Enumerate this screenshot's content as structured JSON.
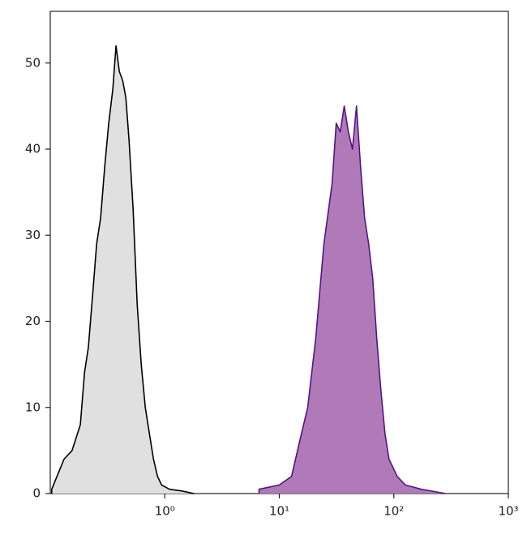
{
  "chart_data": {
    "type": "histogram-overlay",
    "x_scale": "log",
    "xlim": [
      0.1,
      1000
    ],
    "xticks": [
      {
        "value": 1,
        "label": "10⁰"
      },
      {
        "value": 10,
        "label": "10¹"
      },
      {
        "value": 100,
        "label": "10²"
      },
      {
        "value": 1000,
        "label": "10³"
      }
    ],
    "ylim": [
      0,
      56
    ],
    "yticks": [
      0,
      10,
      20,
      30,
      40,
      50
    ],
    "series": [
      {
        "color": "#000000",
        "fill": "#e0e0e0",
        "x": [
          0.103,
          0.132,
          0.155,
          0.183,
          0.199,
          0.215,
          0.234,
          0.254,
          0.275,
          0.299,
          0.324,
          0.352,
          0.375,
          0.401,
          0.428,
          0.457,
          0.488,
          0.529,
          0.574,
          0.623,
          0.676,
          0.733,
          0.796,
          0.864,
          0.937,
          1.1,
          1.41,
          1.8
        ],
        "values": [
          0.5,
          4,
          5,
          8,
          14,
          17,
          23,
          29,
          32,
          38,
          43,
          47,
          52,
          49,
          48,
          46,
          41,
          33,
          22,
          15,
          10,
          7,
          4,
          2,
          1,
          0.5,
          0.3,
          0
        ]
      },
      {
        "color": "#521585",
        "fill": "#b07ab8",
        "x": [
          6.65,
          10,
          12.8,
          15,
          17.7,
          20.8,
          24.5,
          28.9,
          31.4,
          34,
          36.9,
          40.1,
          43.5,
          47.2,
          51.2,
          55.6,
          60.3,
          65.4,
          71,
          77.1,
          83.6,
          90.7,
          107,
          126,
          174,
          284
        ],
        "values": [
          0.5,
          1,
          2,
          6,
          10,
          18,
          29,
          36,
          43,
          42,
          45,
          42,
          40,
          45,
          38,
          32,
          29,
          25,
          18,
          12,
          7,
          4,
          2,
          1,
          0.5,
          0
        ]
      }
    ]
  }
}
